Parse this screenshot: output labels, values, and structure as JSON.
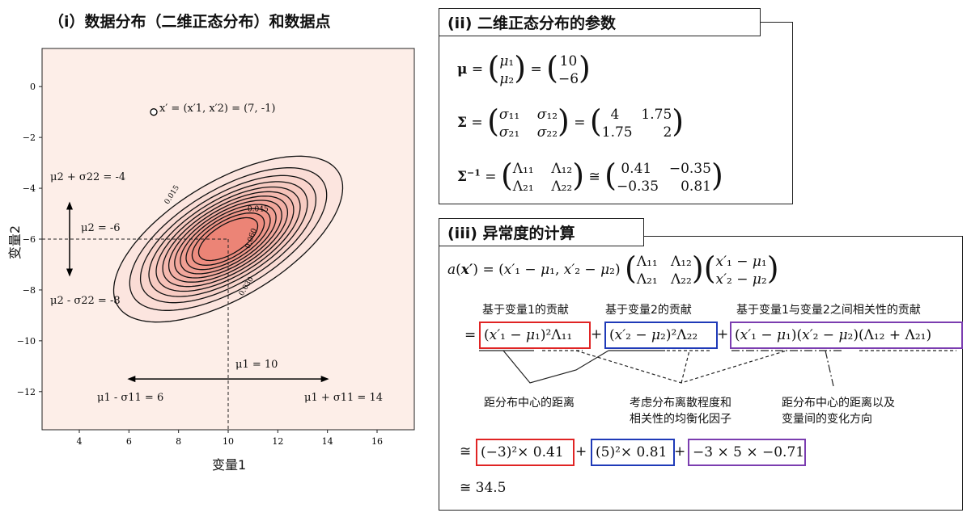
{
  "panel1": {
    "title": "（i）数据分布（二维正态分布）和数据点",
    "xlabel": "变量1",
    "ylabel": "变量2",
    "xticks": [
      "4",
      "6",
      "8",
      "10",
      "12",
      "14",
      "16"
    ],
    "yticks": [
      "0",
      "−2",
      "−4",
      "−6",
      "−8",
      "−10",
      "−12"
    ],
    "point_label": "x′ = (x′1, x′2) = (7, -1)",
    "mu2_plus": "μ2 + σ22 = -4",
    "mu2": "μ2 = -6",
    "mu2_minus": "μ2 - σ22 = -8",
    "mu1": "μ1 = 10",
    "mu1_minus": "μ1 - σ11 = 6",
    "mu1_plus": "μ1 + σ11 = 14",
    "contour_labels": [
      "0.015",
      "0.030",
      "0.045",
      "0.060"
    ]
  },
  "chart_data": {
    "type": "contour",
    "xlabel": "变量1",
    "ylabel": "变量2",
    "xlim": [
      2.5,
      17.5
    ],
    "ylim": [
      -13.5,
      1.5
    ],
    "mean": [
      10,
      -6
    ],
    "covariance": [
      [
        4,
        1.75
      ],
      [
        1.75,
        2
      ]
    ],
    "contour_levels": [
      0.005,
      0.01,
      0.015,
      0.02,
      0.025,
      0.03,
      0.035,
      0.04,
      0.045,
      0.05,
      0.055,
      0.06
    ],
    "point": [
      7,
      -1
    ]
  },
  "panel2": {
    "title": "(ii) 二维正态分布的参数",
    "mu_eq": "μ = (μ1, μ2) = (10, −6)",
    "mu_vals": [
      "10",
      "−6"
    ],
    "sigma_vals": [
      "4",
      "1.75",
      "1.75",
      "2"
    ],
    "inv_vals": [
      "0.41",
      "−0.35",
      "−0.35",
      "0.81"
    ]
  },
  "panel3": {
    "title": "(iii) 异常度的计算",
    "label_var1": "基于变量1的贡献",
    "label_var2": "基于变量2的贡献",
    "label_corr": "基于变量1与变量2之间相关性的贡献",
    "note_dist": "距分布中心的距离",
    "note_disp_1": "考虑分布离散程度和",
    "note_disp_2": "相关性的均衡化因子",
    "note_dir_1": "距分布中心的距离以及",
    "note_dir_2": "变量间的变化方向",
    "val1": "(−3)²× 0.41",
    "val2": "(5)²× 0.81",
    "val3": "−3 × 5 × −0.71",
    "result": "≅ 34.5"
  }
}
